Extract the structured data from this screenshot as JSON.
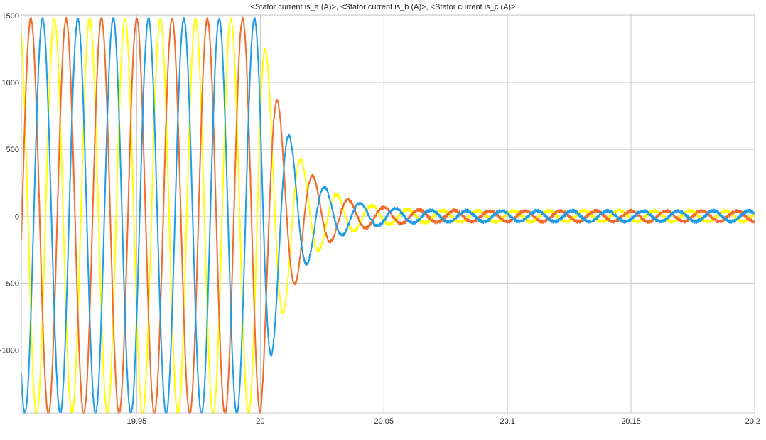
{
  "chart_data": {
    "type": "line",
    "title": "<Stator current is_a (A)>, <Stator current is_b (A)>, <Stator current is_c (A)>",
    "xlabel": "",
    "ylabel": "",
    "xlim": [
      19.9033,
      20.2
    ],
    "ylim": [
      -1470,
      1510
    ],
    "grid": true,
    "legend": "none",
    "x_ticks": [
      19.95,
      20,
      20.05,
      20.1,
      20.15,
      20.2
    ],
    "x_tick_labels": [
      "19.95",
      "20",
      "20.05",
      "20.1",
      "20.15",
      "20.2"
    ],
    "y_ticks": [
      -1000,
      -500,
      0,
      500,
      1000,
      1500
    ],
    "y_tick_labels": [
      "-1000",
      "-500",
      "0",
      "500",
      "1000",
      "1500"
    ],
    "waveform": {
      "frequency_hz": 70,
      "steady_amplitude": 1475,
      "fault_time": 20.0,
      "decay_time_constant": 0.0125,
      "residual_amplitude": 40,
      "noise_amplitude": 12
    },
    "series": [
      {
        "color": "#EDB120",
        "display_color": "#FFFF00",
        "phase_deg": 30
      },
      {
        "color": "#D95319",
        "display_color": "#F26B2A",
        "phase_deg": -90
      },
      {
        "color": "#0072BD",
        "display_color": "#1E9CE8",
        "phase_deg": 150
      }
    ]
  }
}
